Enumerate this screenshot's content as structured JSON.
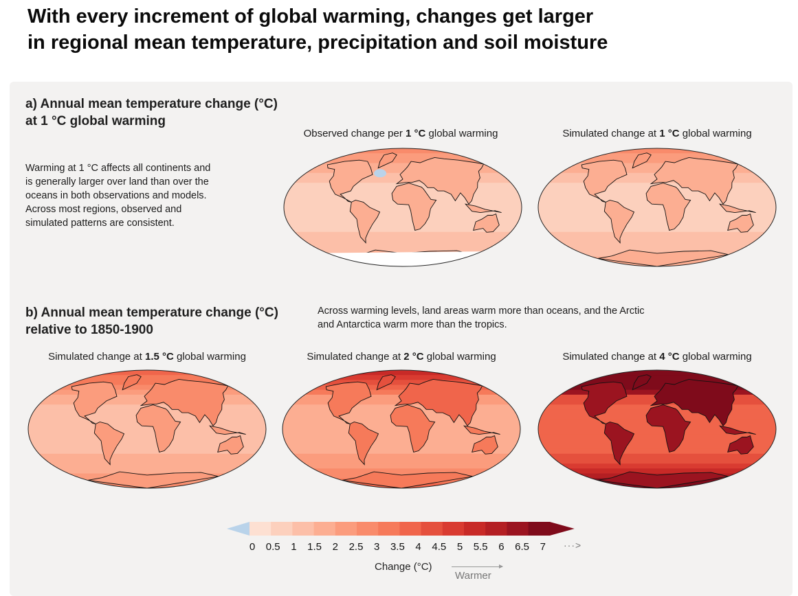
{
  "title_line1": "With every increment of global warming, changes get larger",
  "title_line2": "in regional mean temperature, precipitation and soil moisture",
  "section_a": {
    "heading_line1": "a) Annual mean temperature change (°C)",
    "heading_line2": "at 1 °C global warming",
    "description": [
      "Warming at 1 °C affects all continents and",
      "is generally larger over land than over the",
      "oceans in both observations and models.",
      "Across most regions, observed and",
      "simulated patterns are consistent."
    ],
    "maps": [
      {
        "caption_pre": "Observed change per ",
        "caption_bold": "1 °C",
        "caption_post": " global warming",
        "level": 1,
        "observed": true
      },
      {
        "caption_pre": "Simulated change at ",
        "caption_bold": "1 °C",
        "caption_post": " global warming",
        "level": 1,
        "observed": false
      }
    ]
  },
  "section_b": {
    "heading_line1": "b) Annual mean temperature change (°C)",
    "heading_line2": "relative to 1850-1900",
    "note_line1": "Across warming levels, land areas warm more than oceans, and the Arctic",
    "note_line2": "and Antarctica warm more than the tropics.",
    "maps": [
      {
        "caption_pre": "Simulated change at ",
        "caption_bold": "1.5 °C",
        "caption_post": " global warming",
        "level": 1.5
      },
      {
        "caption_pre": "Simulated change at ",
        "caption_bold": "2 °C",
        "caption_post": " global warming",
        "level": 2
      },
      {
        "caption_pre": "Simulated change at ",
        "caption_bold": "4 °C",
        "caption_post": " global warming",
        "level": 4
      }
    ]
  },
  "colorbar": {
    "ticks": [
      "0",
      "0.5",
      "1",
      "1.5",
      "2",
      "2.5",
      "3",
      "3.5",
      "4",
      "4.5",
      "5",
      "5.5",
      "6",
      "6.5",
      "7"
    ],
    "colors": [
      "#fde0d2",
      "#fcd0bd",
      "#fcbfa8",
      "#fcae92",
      "#fb9c7d",
      "#f98b6b",
      "#f67a5a",
      "#f0654b",
      "#e5503d",
      "#d93b31",
      "#c82a27",
      "#b41f23",
      "#9b1420",
      "#7f0b1b"
    ],
    "negative_color": "#b9d3ea",
    "label": "Change (°C)",
    "direction_label": "Warmer",
    "overflow_arrow": "···>"
  }
}
